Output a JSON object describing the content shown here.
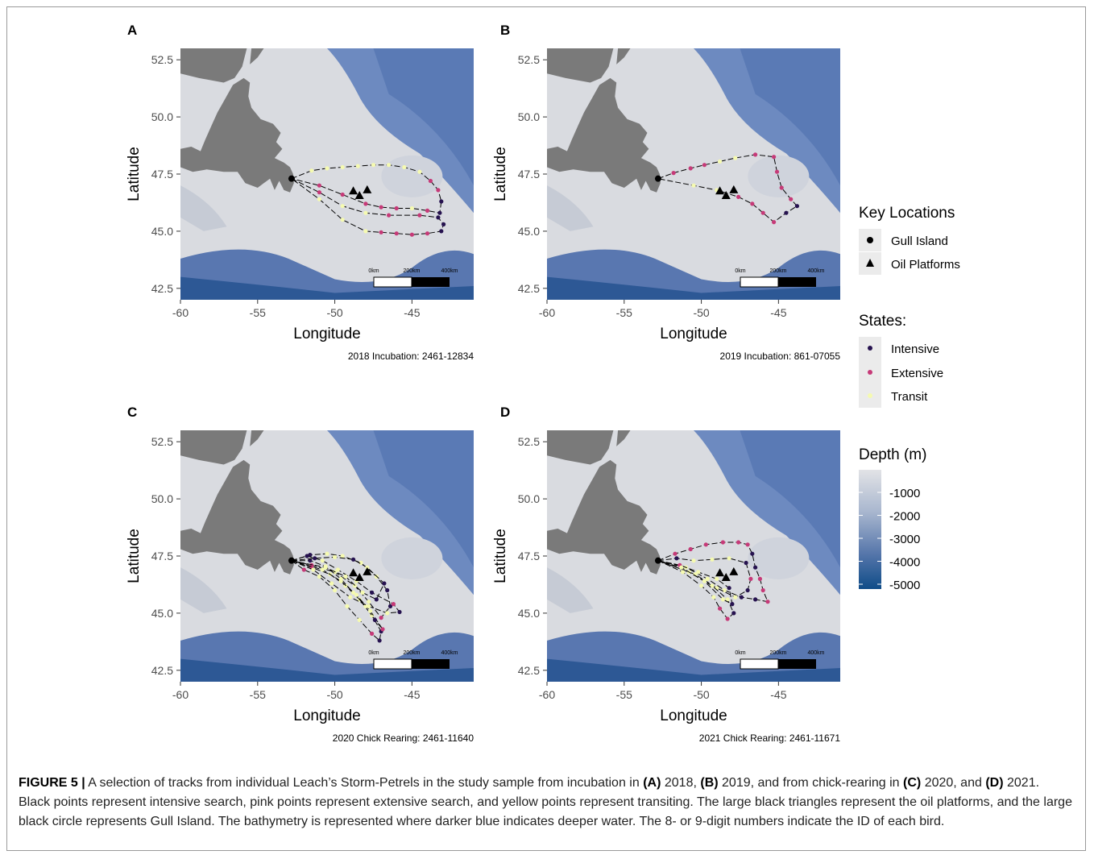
{
  "panels": [
    {
      "letter": "A",
      "subtitle": "2018 Incubation: 2461-12834",
      "tracks": [
        [
          [
            -52.8,
            47.3,
            "t"
          ],
          [
            -51.5,
            47.65,
            "t"
          ],
          [
            -50.5,
            47.75,
            "t"
          ],
          [
            -49.5,
            47.8,
            "t"
          ],
          [
            -48.5,
            47.85,
            "t"
          ],
          [
            -47.5,
            47.9,
            "t"
          ],
          [
            -46.5,
            47.9,
            "t"
          ],
          [
            -45.5,
            47.8,
            "t"
          ],
          [
            -44.5,
            47.6,
            "t"
          ],
          [
            -43.8,
            47.2,
            "e"
          ],
          [
            -43.3,
            46.8,
            "e"
          ],
          [
            -43.1,
            46.3,
            "i"
          ],
          [
            -43.2,
            45.8,
            "i"
          ],
          [
            -44.0,
            45.9,
            "e"
          ],
          [
            -45.0,
            46.0,
            "t"
          ],
          [
            -46.0,
            46.0,
            "e"
          ],
          [
            -47.0,
            46.05,
            "e"
          ],
          [
            -48.0,
            46.2,
            "e"
          ],
          [
            -49.5,
            46.6,
            "e"
          ],
          [
            -51.0,
            47.0,
            "e"
          ],
          [
            -52.8,
            47.3,
            "t"
          ]
        ],
        [
          [
            -52.8,
            47.3,
            "t"
          ],
          [
            -51.0,
            46.7,
            "e"
          ],
          [
            -49.5,
            46.1,
            "t"
          ],
          [
            -48.0,
            45.8,
            "t"
          ],
          [
            -46.5,
            45.7,
            "e"
          ],
          [
            -44.5,
            45.7,
            "e"
          ],
          [
            -43.3,
            45.6,
            "i"
          ],
          [
            -42.95,
            45.3,
            "i"
          ],
          [
            -43.1,
            45.0,
            "i"
          ],
          [
            -44.0,
            44.9,
            "e"
          ],
          [
            -45.0,
            44.85,
            "e"
          ],
          [
            -46.0,
            44.9,
            "e"
          ],
          [
            -47.0,
            44.95,
            "e"
          ],
          [
            -48.0,
            45.0,
            "t"
          ],
          [
            -49.5,
            45.5,
            "t"
          ],
          [
            -51.0,
            46.4,
            "t"
          ],
          [
            -52.8,
            47.3,
            "t"
          ]
        ]
      ]
    },
    {
      "letter": "B",
      "subtitle": "2019 Incubation: 861-07055",
      "tracks": [
        [
          [
            -52.8,
            47.3,
            "t"
          ],
          [
            -51.8,
            47.55,
            "e"
          ],
          [
            -50.7,
            47.75,
            "e"
          ],
          [
            -49.8,
            47.9,
            "e"
          ],
          [
            -48.8,
            48.05,
            "t"
          ],
          [
            -47.8,
            48.2,
            "t"
          ],
          [
            -46.5,
            48.35,
            "e"
          ],
          [
            -45.3,
            48.25,
            "e"
          ],
          [
            -45.1,
            47.6,
            "e"
          ],
          [
            -44.8,
            46.9,
            "e"
          ],
          [
            -44.2,
            46.4,
            "e"
          ],
          [
            -43.8,
            46.1,
            "i"
          ],
          [
            -44.5,
            45.8,
            "i"
          ],
          [
            -45.3,
            45.4,
            "e"
          ],
          [
            -46.0,
            45.8,
            "e"
          ],
          [
            -46.7,
            46.2,
            "e"
          ],
          [
            -47.6,
            46.5,
            "e"
          ],
          [
            -49.0,
            46.8,
            "t"
          ],
          [
            -50.5,
            47.0,
            "t"
          ],
          [
            -52.8,
            47.3,
            "t"
          ]
        ]
      ]
    },
    {
      "letter": "C",
      "subtitle": "2020 Chick Rearing: 2461-11640",
      "tracks": [
        [
          [
            -52.8,
            47.3,
            "t"
          ],
          [
            -51.6,
            47.55,
            "i"
          ],
          [
            -50.5,
            47.6,
            "t"
          ],
          [
            -49.5,
            47.5,
            "t"
          ],
          [
            -48.3,
            47.2,
            "t"
          ],
          [
            -47.3,
            46.6,
            "t"
          ],
          [
            -46.6,
            46.0,
            "i"
          ],
          [
            -46.4,
            45.3,
            "i"
          ],
          [
            -47.0,
            44.8,
            "e"
          ],
          [
            -47.8,
            45.5,
            "t"
          ],
          [
            -48.7,
            46.2,
            "t"
          ],
          [
            -50.0,
            46.8,
            "t"
          ],
          [
            -51.5,
            47.1,
            "e"
          ],
          [
            -52.8,
            47.3,
            "t"
          ]
        ],
        [
          [
            -52.8,
            47.3,
            "t"
          ],
          [
            -52.0,
            46.9,
            "e"
          ],
          [
            -51.0,
            46.6,
            "t"
          ],
          [
            -50.0,
            46.0,
            "t"
          ],
          [
            -49.2,
            45.3,
            "t"
          ],
          [
            -48.4,
            44.7,
            "t"
          ],
          [
            -47.6,
            44.1,
            "e"
          ],
          [
            -47.1,
            43.8,
            "i"
          ],
          [
            -47.0,
            44.2,
            "i"
          ],
          [
            -47.6,
            44.9,
            "t"
          ],
          [
            -48.4,
            45.6,
            "t"
          ],
          [
            -49.3,
            46.2,
            "t"
          ],
          [
            -50.3,
            46.7,
            "t"
          ],
          [
            -51.5,
            47.0,
            "e"
          ],
          [
            -52.8,
            47.3,
            "t"
          ]
        ],
        [
          [
            -52.8,
            47.3,
            "t"
          ],
          [
            -51.6,
            47.3,
            "i"
          ],
          [
            -50.6,
            47.05,
            "t"
          ],
          [
            -49.6,
            46.5,
            "t"
          ],
          [
            -48.8,
            45.9,
            "t"
          ],
          [
            -48.0,
            45.3,
            "t"
          ],
          [
            -47.4,
            44.7,
            "i"
          ],
          [
            -46.9,
            44.3,
            "e"
          ],
          [
            -47.7,
            45.1,
            "t"
          ],
          [
            -48.6,
            45.8,
            "t"
          ],
          [
            -49.6,
            46.4,
            "t"
          ],
          [
            -50.8,
            46.9,
            "t"
          ],
          [
            -52.8,
            47.3,
            "t"
          ]
        ],
        [
          [
            -52.8,
            47.3,
            "t"
          ],
          [
            -51.8,
            47.5,
            "i"
          ],
          [
            -50.8,
            47.3,
            "t"
          ],
          [
            -49.8,
            46.9,
            "t"
          ],
          [
            -48.6,
            46.4,
            "t"
          ],
          [
            -47.6,
            45.9,
            "i"
          ],
          [
            -46.2,
            45.4,
            "e"
          ],
          [
            -45.8,
            45.05,
            "i"
          ],
          [
            -46.6,
            45.0,
            "t"
          ],
          [
            -47.8,
            45.3,
            "t"
          ],
          [
            -49.0,
            45.7,
            "t"
          ],
          [
            -50.2,
            46.3,
            "t"
          ],
          [
            -51.4,
            46.9,
            "t"
          ],
          [
            -52.8,
            47.3,
            "t"
          ]
        ],
        [
          [
            -52.8,
            47.3,
            "t"
          ],
          [
            -51.3,
            47.4,
            "i"
          ],
          [
            -50.0,
            47.45,
            "t"
          ],
          [
            -48.8,
            47.35,
            "i"
          ],
          [
            -47.9,
            47.0,
            "t"
          ],
          [
            -46.8,
            46.3,
            "i"
          ],
          [
            -47.3,
            45.6,
            "i"
          ],
          [
            -48.2,
            45.9,
            "t"
          ],
          [
            -49.3,
            46.6,
            "t"
          ],
          [
            -50.6,
            47.0,
            "t"
          ],
          [
            -52.8,
            47.3,
            "t"
          ]
        ]
      ]
    },
    {
      "letter": "D",
      "subtitle": "2021 Chick Rearing: 2461-11671",
      "tracks": [
        [
          [
            -52.8,
            47.3,
            "t"
          ],
          [
            -51.7,
            47.6,
            "e"
          ],
          [
            -50.7,
            47.8,
            "e"
          ],
          [
            -49.7,
            48.0,
            "e"
          ],
          [
            -48.6,
            48.1,
            "e"
          ],
          [
            -47.6,
            48.1,
            "e"
          ],
          [
            -47.0,
            48.0,
            "e"
          ],
          [
            -46.7,
            47.6,
            "i"
          ],
          [
            -46.5,
            47.0,
            "i"
          ],
          [
            -46.2,
            46.5,
            "e"
          ],
          [
            -46.0,
            46.0,
            "e"
          ],
          [
            -45.7,
            45.5,
            "e"
          ],
          [
            -46.5,
            45.6,
            "i"
          ],
          [
            -47.4,
            45.7,
            "i"
          ],
          [
            -48.5,
            46.0,
            "t"
          ],
          [
            -49.6,
            46.5,
            "t"
          ],
          [
            -51.0,
            47.0,
            "t"
          ],
          [
            -52.8,
            47.3,
            "t"
          ]
        ],
        [
          [
            -52.8,
            47.3,
            "t"
          ],
          [
            -51.6,
            47.4,
            "i"
          ],
          [
            -50.5,
            47.3,
            "t"
          ],
          [
            -49.3,
            47.35,
            "t"
          ],
          [
            -48.2,
            47.4,
            "t"
          ],
          [
            -47.1,
            47.2,
            "i"
          ],
          [
            -46.8,
            46.5,
            "e"
          ],
          [
            -47.0,
            46.0,
            "i"
          ],
          [
            -47.8,
            45.7,
            "t"
          ],
          [
            -49.0,
            46.1,
            "t"
          ],
          [
            -50.4,
            46.7,
            "t"
          ],
          [
            -52.8,
            47.3,
            "t"
          ]
        ],
        [
          [
            -52.8,
            47.3,
            "t"
          ],
          [
            -51.2,
            46.8,
            "t"
          ],
          [
            -50.0,
            46.2,
            "t"
          ],
          [
            -49.2,
            45.7,
            "t"
          ],
          [
            -48.8,
            45.2,
            "e"
          ],
          [
            -48.3,
            44.75,
            "e"
          ],
          [
            -47.9,
            45.0,
            "i"
          ],
          [
            -48.3,
            45.6,
            "t"
          ],
          [
            -49.3,
            46.2,
            "t"
          ],
          [
            -50.8,
            46.8,
            "t"
          ],
          [
            -52.8,
            47.3,
            "t"
          ]
        ],
        [
          [
            -52.8,
            47.3,
            "t"
          ],
          [
            -51.4,
            47.1,
            "e"
          ],
          [
            -50.2,
            46.8,
            "t"
          ],
          [
            -49.0,
            46.5,
            "t"
          ],
          [
            -48.2,
            46.1,
            "i"
          ],
          [
            -48.0,
            45.4,
            "i"
          ],
          [
            -48.6,
            45.6,
            "t"
          ],
          [
            -49.8,
            46.4,
            "t"
          ],
          [
            -51.3,
            47.0,
            "t"
          ],
          [
            -52.8,
            47.3,
            "t"
          ]
        ]
      ]
    }
  ],
  "axes": {
    "xlabel": "Longitude",
    "ylabel": "Latitude",
    "xticks": [
      -60,
      -55,
      -50,
      -45
    ],
    "yticks": [
      42.5,
      45.0,
      47.5,
      50.0,
      52.5
    ],
    "xlim": [
      -60,
      -41
    ],
    "ylim": [
      42,
      53
    ],
    "scale_labels": [
      "0km",
      "200km",
      "400km"
    ]
  },
  "key_locations": {
    "title": "Key Locations",
    "gull_island": {
      "label": "Gull Island",
      "lon": -52.8,
      "lat": 47.3
    },
    "oil_platforms": {
      "label": "Oil Platforms",
      "points": [
        [
          -48.8,
          46.75
        ],
        [
          -48.4,
          46.55
        ],
        [
          -47.9,
          46.8
        ]
      ]
    }
  },
  "states": {
    "title": "States:",
    "items": [
      {
        "label": "Intensive",
        "code": "i",
        "color": "#26124f"
      },
      {
        "label": "Extensive",
        "code": "e",
        "color": "#c63a78"
      },
      {
        "label": "Transit",
        "code": "t",
        "color": "#f5fab0"
      }
    ]
  },
  "depth": {
    "title": "Depth (m)",
    "ticks": [
      "-1000",
      "-2000",
      "-3000",
      "-4000",
      "-5000"
    ],
    "colors": [
      "#dcdee3",
      "#0f4c88"
    ]
  },
  "caption": {
    "label": "FIGURE 5 |",
    "text_a": " A selection of tracks from individual Leach’s Storm-Petrels in the study sample from incubation in ",
    "ref_a": "(A)",
    "text_b": " 2018, ",
    "ref_b": "(B)",
    "text_c": " 2019, and from chick-rearing in ",
    "ref_c": "(C)",
    "text_d": " 2020, and ",
    "ref_d": "(D)",
    "text_e": " 2021. Black points represent intensive search, pink points represent extensive search, and yellow points represent transiting. The large black triangles represent the oil platforms, and the large black circle represents Gull Island. The bathymetry is represented where darker blue indicates deeper water. The 8- or 9-digit numbers indicate the ID of each bird."
  }
}
